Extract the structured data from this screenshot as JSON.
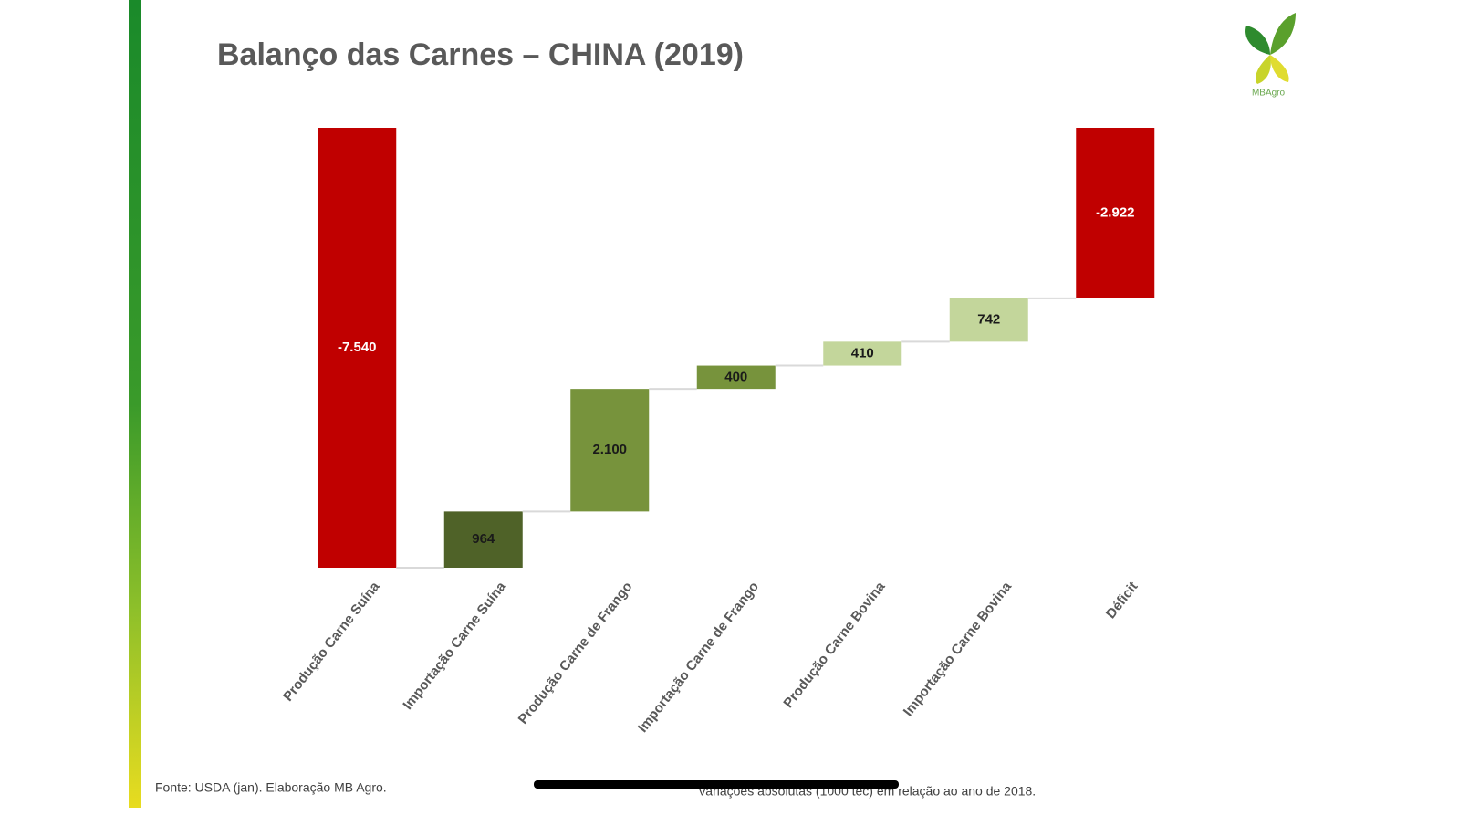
{
  "chart_data": {
    "type": "waterfall",
    "title": "Balanço das Carnes – CHINA (2019)",
    "categories": [
      "Produção Carne Suína",
      "Importação Carne Suína",
      "Produção Carne de Frango",
      "Importação Carne de Frango",
      "Produção Carne Bovina",
      "Importação Carne Bovina",
      "Déficit"
    ],
    "values": [
      -7540,
      964,
      2100,
      400,
      410,
      742,
      -2922
    ],
    "value_labels": [
      "-7.540",
      "964",
      "2.100",
      "400",
      "410",
      "742",
      "-2.922"
    ],
    "colors": [
      "#c00000",
      "#4f6228",
      "#77933c",
      "#77933c",
      "#c3d69b",
      "#c3d69b",
      "#c00000"
    ],
    "source": "Fonte: USDA (jan). Elaboração MB Agro.",
    "note": "Variações absolutas (1000 tec) em relação ao ano de 2018."
  },
  "logo": "MBAgro"
}
